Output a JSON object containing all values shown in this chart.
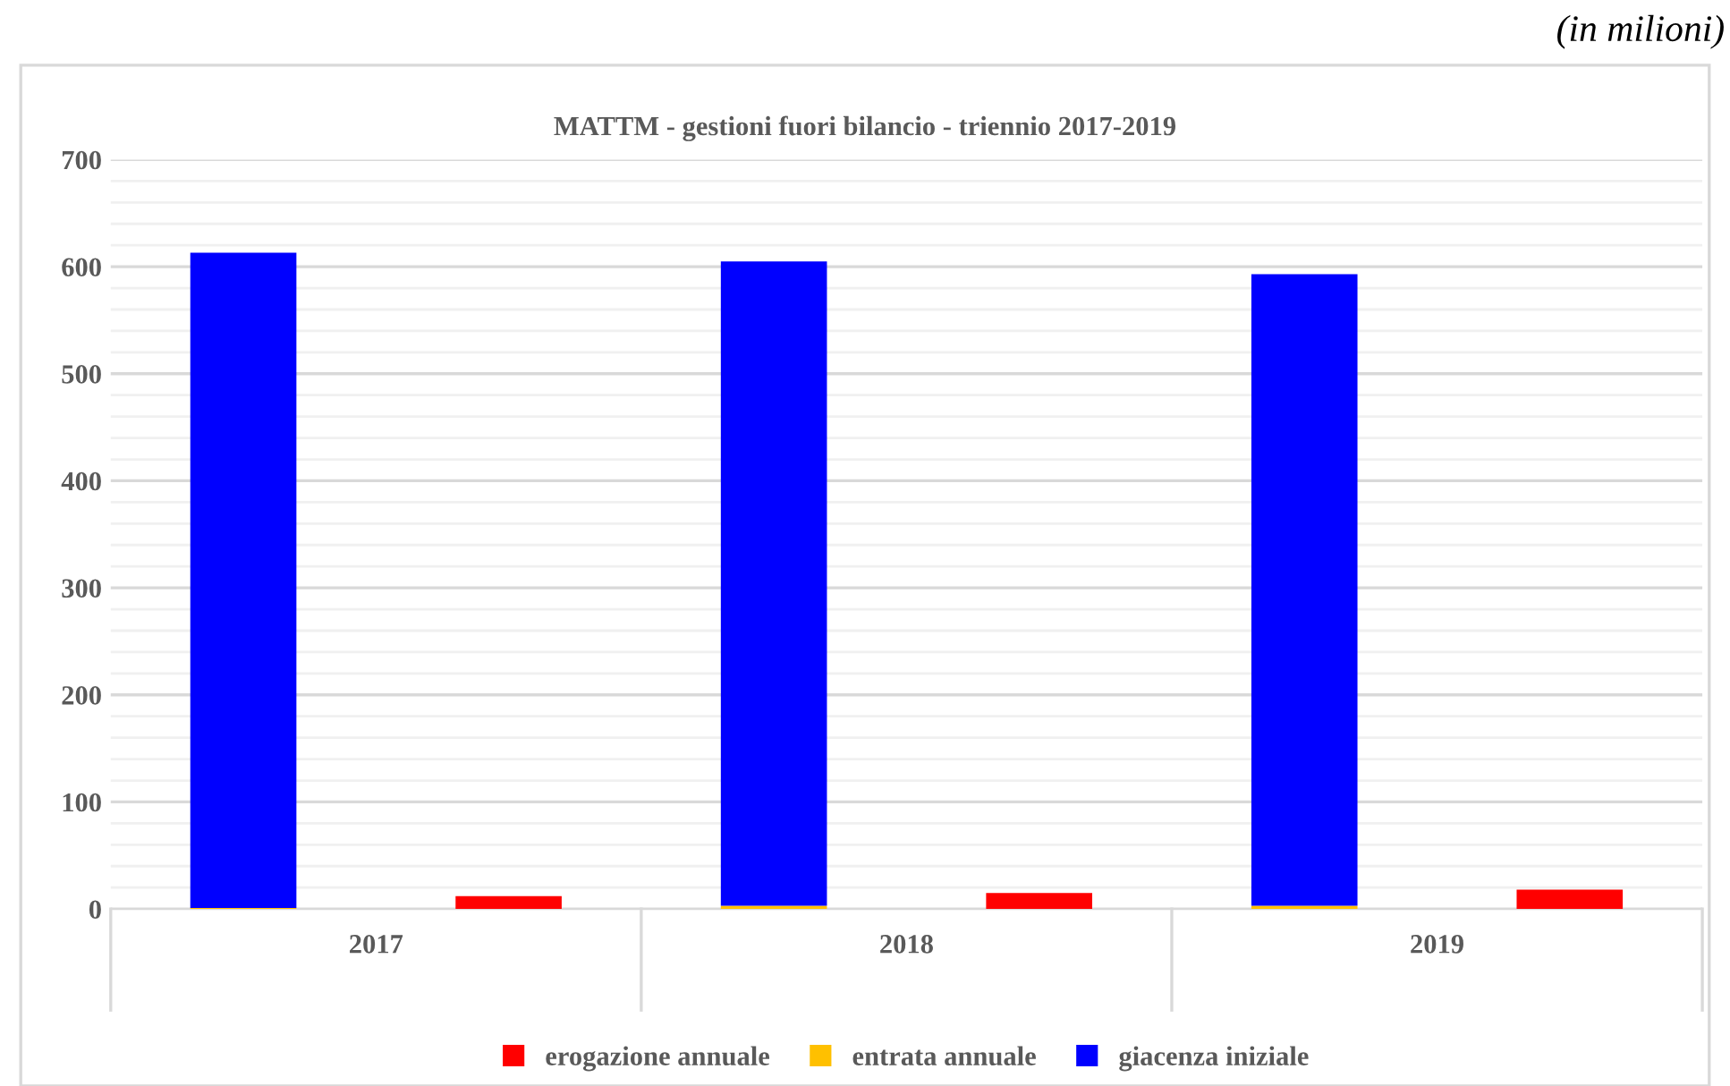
{
  "chart_data": {
    "type": "bar",
    "title": "MATTM - gestioni fuori bilancio - triennio 2017-2019",
    "annotations": [
      "(in milioni)"
    ],
    "categories": [
      "2017",
      null,
      "2018",
      null,
      "2019",
      null
    ],
    "stacked": true,
    "series": [
      {
        "name": "erogazione annuale",
        "color": "#ff0000",
        "values": [
          null,
          12,
          null,
          15,
          null,
          18
        ]
      },
      {
        "name": "entrata annuale",
        "color": "#ffc000",
        "values": [
          1,
          null,
          3,
          null,
          3,
          null
        ]
      },
      {
        "name": "giacenza iniziale",
        "color": "#0000ff",
        "values": [
          612,
          null,
          602,
          null,
          590,
          null
        ]
      }
    ],
    "ylim": [
      0,
      700
    ],
    "yticks": [
      0,
      100,
      200,
      300,
      400,
      500,
      600,
      700
    ],
    "grid": "y",
    "legend": "bottom"
  }
}
